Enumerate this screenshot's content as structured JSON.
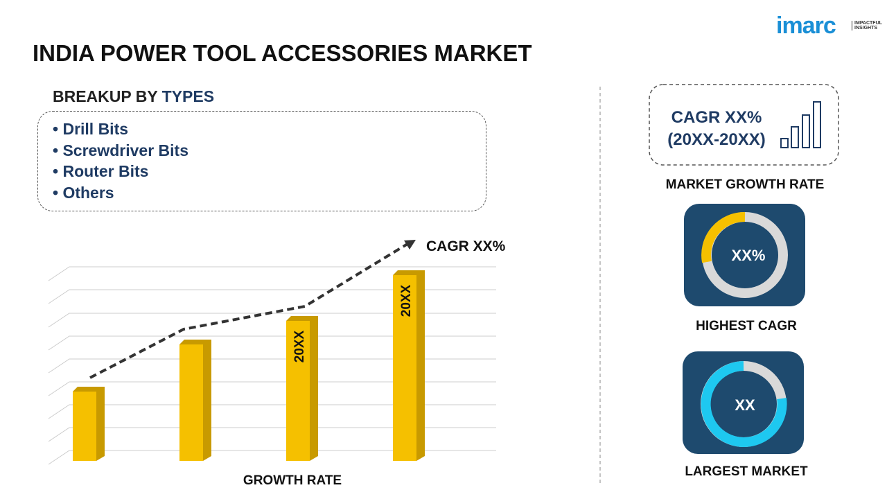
{
  "logo": {
    "brand": "imarc",
    "tagline": "IMPACTFUL INSIGHTS"
  },
  "title": "INDIA POWER TOOL ACCESSORIES MARKET",
  "breakup": {
    "label": "BREAKUP BY",
    "highlight": "TYPES",
    "items": [
      "Drill Bits",
      "Screwdriver Bits",
      "Router Bits",
      "Others"
    ]
  },
  "chart": {
    "trend_label": "CAGR XX%",
    "bar_labels": [
      "20XX",
      "20XX"
    ],
    "axis_label": "GROWTH RATE"
  },
  "panels": {
    "growth": {
      "cagr": "CAGR XX%",
      "period": "(20XX-20XX)",
      "caption": "MARKET GROWTH RATE"
    },
    "highest": {
      "value": "XX%",
      "caption": "HIGHEST CAGR"
    },
    "largest": {
      "value": "XX",
      "caption": "LARGEST MARKET"
    }
  }
}
